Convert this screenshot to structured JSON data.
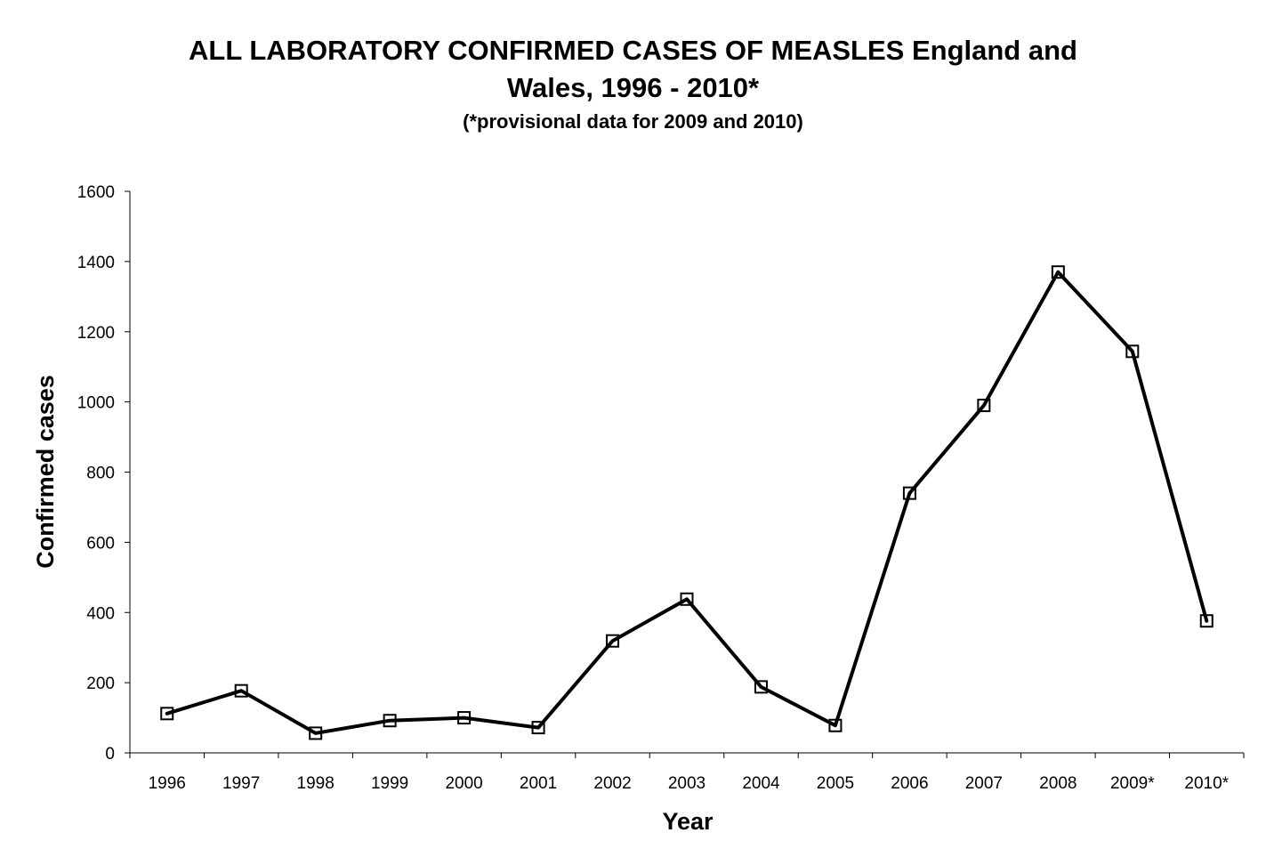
{
  "chart_data": {
    "type": "line",
    "title_line1": "ALL LABORATORY CONFIRMED CASES OF MEASLES England and",
    "title_line2": "Wales, 1996 - 2010*",
    "subtitle": "(*provisional data for 2009 and 2010)",
    "xlabel": "Year",
    "ylabel": "Confirmed cases",
    "categories": [
      "1996",
      "1997",
      "1998",
      "1999",
      "2000",
      "2001",
      "2002",
      "2003",
      "2004",
      "2005",
      "2006",
      "2007",
      "2008",
      "2009*",
      "2010*"
    ],
    "series": [
      {
        "name": "Confirmed cases",
        "values": [
          112,
          177,
          56,
          92,
          100,
          72,
          319,
          438,
          188,
          78,
          740,
          990,
          1370,
          1144,
          376
        ]
      }
    ],
    "ylim": [
      0,
      1600
    ],
    "yticks": [
      0,
      200,
      400,
      600,
      800,
      1000,
      1200,
      1400,
      1600
    ],
    "grid": false,
    "legend": "none",
    "marker": "hollow-square",
    "line_color": "#000000"
  }
}
